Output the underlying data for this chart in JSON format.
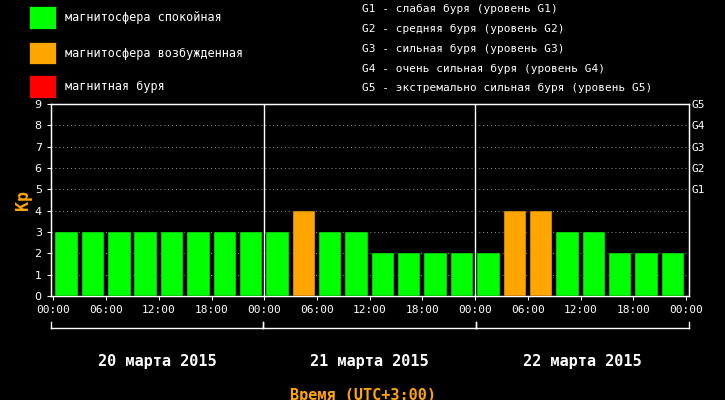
{
  "background_color": "#000000",
  "bar_width": 0.85,
  "days": [
    "20 марта 2015",
    "21 марта 2015",
    "22 марта 2015"
  ],
  "values": [
    [
      3,
      3,
      3,
      3,
      3,
      3,
      3,
      3
    ],
    [
      3,
      4,
      3,
      3,
      2,
      2,
      2,
      2
    ],
    [
      2,
      4,
      4,
      3,
      3,
      2,
      2,
      2
    ]
  ],
  "colors": [
    [
      "#00ff00",
      "#00ff00",
      "#00ff00",
      "#00ff00",
      "#00ff00",
      "#00ff00",
      "#00ff00",
      "#00ff00"
    ],
    [
      "#00ff00",
      "#ffa500",
      "#00ff00",
      "#00ff00",
      "#00ff00",
      "#00ff00",
      "#00ff00",
      "#00ff00"
    ],
    [
      "#00ff00",
      "#ffa500",
      "#ffa500",
      "#00ff00",
      "#00ff00",
      "#00ff00",
      "#00ff00",
      "#00ff00"
    ]
  ],
  "tick_labels": [
    "00:00",
    "06:00",
    "12:00",
    "18:00",
    "00:00",
    "06:00",
    "12:00",
    "18:00",
    "00:00",
    "06:00",
    "12:00",
    "18:00",
    "00:00"
  ],
  "ylabel": "Кр",
  "xlabel": "Время (UTC+3:00)",
  "ylim": [
    0,
    9
  ],
  "yticks": [
    0,
    1,
    2,
    3,
    4,
    5,
    6,
    7,
    8,
    9
  ],
  "g_labels": [
    "G5",
    "G4",
    "G3",
    "G2",
    "G1"
  ],
  "g_positions": [
    9,
    8,
    7,
    6,
    5
  ],
  "legend_items": [
    {
      "label": "магнитосфера спокойная",
      "color": "#00ff00"
    },
    {
      "label": "магнитосфера возбужденная",
      "color": "#ffa500"
    },
    {
      "label": "магнитная буря",
      "color": "#ff0000"
    }
  ],
  "legend2_lines": [
    "G1 - слабая буря (уровень G1)",
    "G2 - средняя буря (уровень G2)",
    "G3 - сильная буря (уровень G3)",
    "G4 - очень сильная буря (уровень G4)",
    "G5 - экстремально сильная буря (уровень G5)"
  ],
  "grid_color": "#ffffff",
  "axis_color": "#ffffff",
  "text_color": "#ffffff",
  "xlabel_color": "#ffa500",
  "ylabel_color": "#ffa500",
  "separator_color": "#ffffff",
  "day_label_color": "#ffffff",
  "day_font_size": 11,
  "tick_font_size": 8,
  "ylabel_font_size": 12,
  "legend_font_size": 8.5,
  "legend2_font_size": 8.0
}
